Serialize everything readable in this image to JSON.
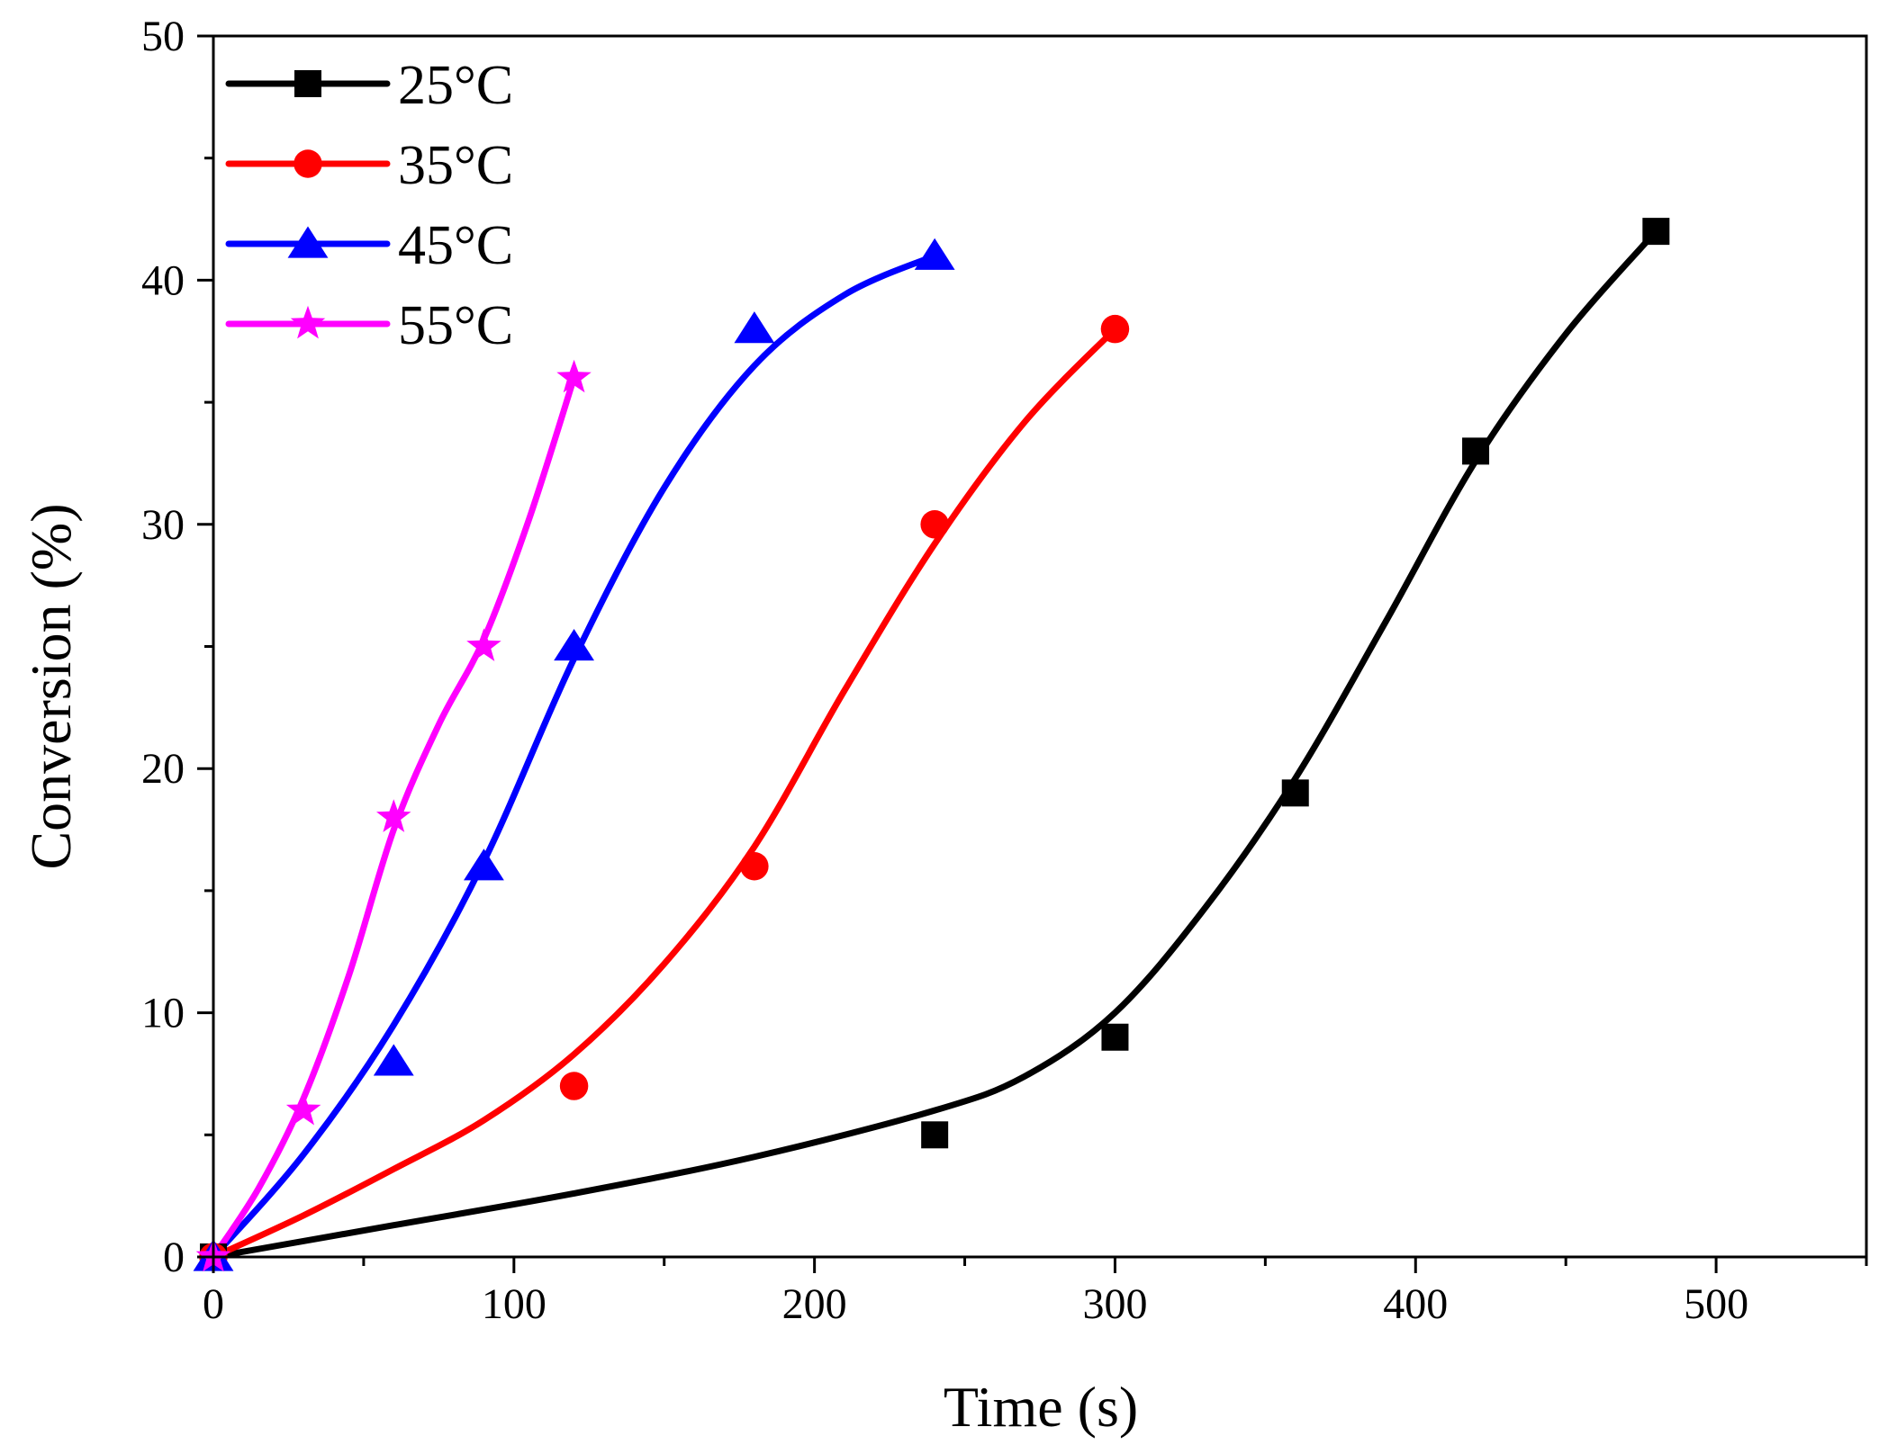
{
  "chart_data": {
    "type": "line",
    "title": "",
    "xlabel": "Time (s)",
    "ylabel": "Conversion (%)",
    "xlim": [
      0,
      550
    ],
    "ylim": [
      0,
      50
    ],
    "xticks": [
      0,
      100,
      200,
      300,
      400,
      500
    ],
    "yticks": [
      0,
      10,
      20,
      30,
      40,
      50
    ],
    "xtick_labels": [
      "0",
      "100",
      "200",
      "300",
      "400",
      "500"
    ],
    "ytick_labels": [
      "0",
      "10",
      "20",
      "30",
      "40",
      "50"
    ],
    "grid": false,
    "legend_position": "top-left",
    "series": [
      {
        "name": "25°C",
        "color": "#000000",
        "marker": "square",
        "points": [
          [
            0,
            0
          ],
          [
            240,
            5
          ],
          [
            300,
            9
          ],
          [
            360,
            19
          ],
          [
            420,
            33
          ],
          [
            480,
            42
          ]
        ],
        "fit_curve": [
          [
            0,
            0
          ],
          [
            60,
            1.3
          ],
          [
            120,
            2.6
          ],
          [
            180,
            4.1
          ],
          [
            240,
            6.0
          ],
          [
            270,
            7.4
          ],
          [
            300,
            10.0
          ],
          [
            330,
            14.3
          ],
          [
            360,
            19.6
          ],
          [
            390,
            26.0
          ],
          [
            420,
            32.6
          ],
          [
            450,
            37.8
          ],
          [
            480,
            42.0
          ]
        ]
      },
      {
        "name": "35°C",
        "color": "#ff0000",
        "marker": "circle",
        "points": [
          [
            0,
            0
          ],
          [
            120,
            7
          ],
          [
            180,
            16
          ],
          [
            240,
            30
          ],
          [
            300,
            38
          ]
        ],
        "fit_curve": [
          [
            0,
            0
          ],
          [
            30,
            1.7
          ],
          [
            60,
            3.6
          ],
          [
            90,
            5.6
          ],
          [
            120,
            8.3
          ],
          [
            150,
            12.0
          ],
          [
            180,
            16.8
          ],
          [
            210,
            23.2
          ],
          [
            240,
            29.2
          ],
          [
            270,
            34.2
          ],
          [
            300,
            38.0
          ]
        ]
      },
      {
        "name": "45°C",
        "color": "#0000ff",
        "marker": "triangle",
        "points": [
          [
            0,
            0
          ],
          [
            60,
            8
          ],
          [
            90,
            16
          ],
          [
            120,
            25
          ],
          [
            180,
            38
          ],
          [
            240,
            41
          ]
        ],
        "fit_curve": [
          [
            0,
            0
          ],
          [
            30,
            4.2
          ],
          [
            60,
            9.5
          ],
          [
            90,
            16.2
          ],
          [
            120,
            24.5
          ],
          [
            150,
            31.5
          ],
          [
            180,
            36.5
          ],
          [
            210,
            39.4
          ],
          [
            240,
            41.0
          ]
        ]
      },
      {
        "name": "55°C",
        "color": "#ff00ff",
        "marker": "star",
        "points": [
          [
            0,
            0
          ],
          [
            30,
            6
          ],
          [
            60,
            18
          ],
          [
            90,
            25
          ],
          [
            120,
            36
          ]
        ],
        "fit_curve": [
          [
            0,
            0
          ],
          [
            15,
            2.8
          ],
          [
            30,
            6.5
          ],
          [
            45,
            11.5
          ],
          [
            60,
            17.5
          ],
          [
            75,
            21.8
          ],
          [
            90,
            25.3
          ],
          [
            105,
            30.2
          ],
          [
            120,
            36.0
          ]
        ]
      }
    ]
  }
}
